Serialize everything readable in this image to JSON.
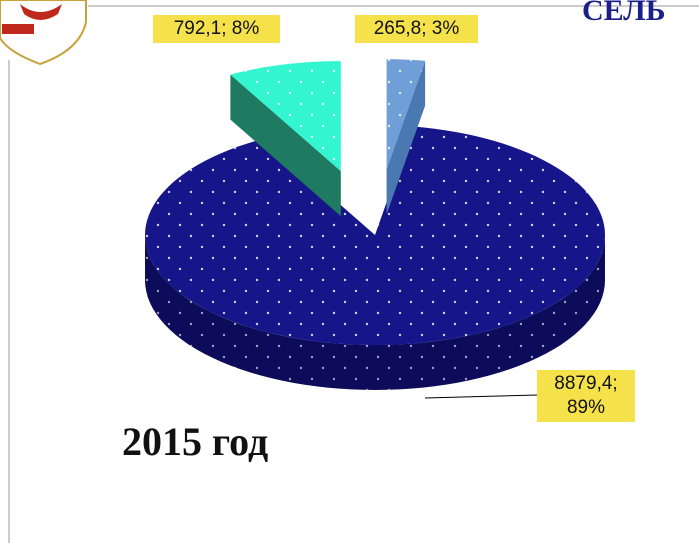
{
  "chart_data": {
    "type": "pie3d",
    "title": "СЕЛЬ",
    "annotation": "2015 год",
    "values": [
      265.8,
      8879.4,
      792.1
    ],
    "value_labels": [
      "265,8; 3%",
      "8879,4; 89%",
      "792,1; 8%"
    ],
    "colors": [
      "#6f9fd6",
      "#16168a",
      "#33f5cf"
    ],
    "side_colors": [
      "#4a78b0",
      "#0c0c5a",
      "#1f7a62"
    ],
    "label_color": "#f5e14a"
  }
}
